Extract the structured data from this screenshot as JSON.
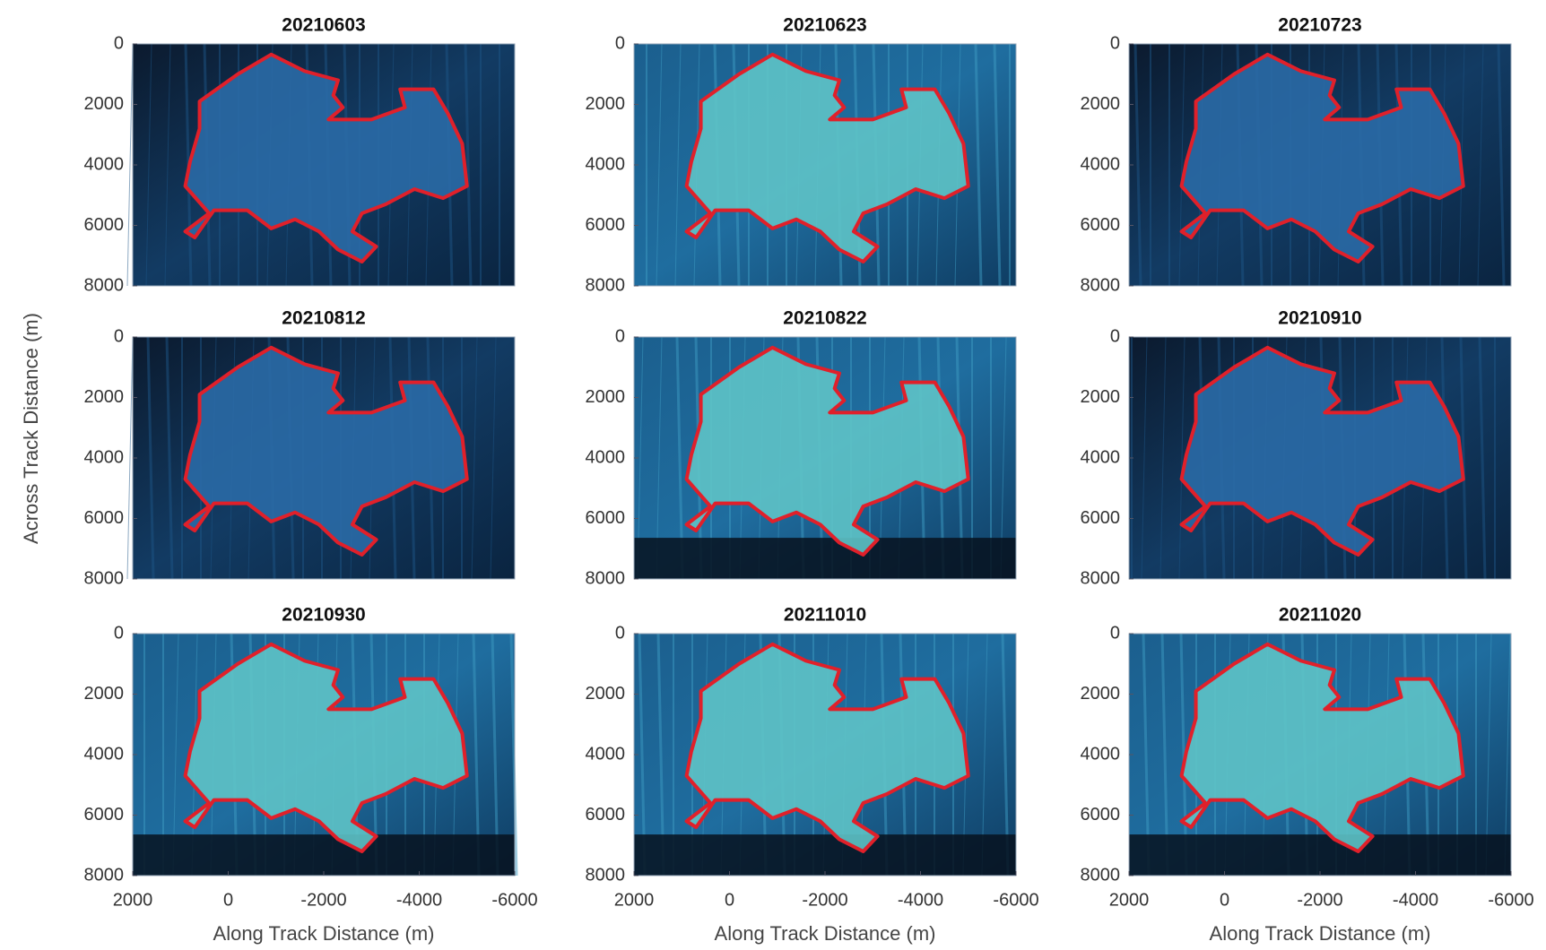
{
  "ylabel": "Across Track Distance (m)",
  "chart_data": [
    {
      "type": "image",
      "title": "20210603",
      "xlim": [
        2000,
        -6000
      ],
      "ylim": [
        0,
        8000
      ],
      "yreverse": true,
      "yticks": [
        0,
        2000,
        4000,
        6000,
        8000
      ]
    },
    {
      "type": "image",
      "title": "20210623",
      "xlim": [
        2000,
        -6000
      ],
      "ylim": [
        0,
        8000
      ],
      "yreverse": true,
      "yticks": [
        0,
        2000,
        4000,
        6000,
        8000
      ]
    },
    {
      "type": "image",
      "title": "20210723",
      "xlim": [
        2000,
        -6000
      ],
      "ylim": [
        0,
        8000
      ],
      "yreverse": true,
      "yticks": [
        0,
        2000,
        4000,
        6000,
        8000
      ]
    },
    {
      "type": "image",
      "title": "20210812",
      "xlim": [
        2000,
        -6000
      ],
      "ylim": [
        0,
        8000
      ],
      "yreverse": true,
      "yticks": [
        0,
        2000,
        4000,
        6000,
        8000
      ]
    },
    {
      "type": "image",
      "title": "20210822",
      "xlim": [
        2000,
        -6000
      ],
      "ylim": [
        0,
        8000
      ],
      "yreverse": true,
      "yticks": [
        0,
        2000,
        4000,
        6000,
        8000
      ]
    },
    {
      "type": "image",
      "title": "20210910",
      "xlim": [
        2000,
        -6000
      ],
      "ylim": [
        0,
        8000
      ],
      "yreverse": true,
      "yticks": [
        0,
        2000,
        4000,
        6000,
        8000
      ]
    },
    {
      "type": "image",
      "title": "20210930",
      "xlim": [
        2000,
        -6000
      ],
      "ylim": [
        0,
        8000
      ],
      "yreverse": true,
      "yticks": [
        0,
        2000,
        4000,
        6000,
        8000
      ],
      "xticks": [
        2000,
        0,
        -2000,
        -4000,
        -6000
      ],
      "xlabel": "Along Track Distance (m)"
    },
    {
      "type": "image",
      "title": "20211010",
      "xlim": [
        2000,
        -6000
      ],
      "ylim": [
        0,
        8000
      ],
      "yreverse": true,
      "yticks": [
        0,
        2000,
        4000,
        6000,
        8000
      ],
      "xticks": [
        2000,
        0,
        -2000,
        -4000,
        -6000
      ],
      "xlabel": "Along Track Distance (m)"
    },
    {
      "type": "image",
      "title": "20211020",
      "xlim": [
        2000,
        -6000
      ],
      "ylim": [
        0,
        8000
      ],
      "yreverse": true,
      "yticks": [
        0,
        2000,
        4000,
        6000,
        8000
      ],
      "xticks": [
        2000,
        0,
        -2000,
        -4000,
        -6000
      ],
      "xlabel": "Along Track Distance (m)"
    }
  ]
}
